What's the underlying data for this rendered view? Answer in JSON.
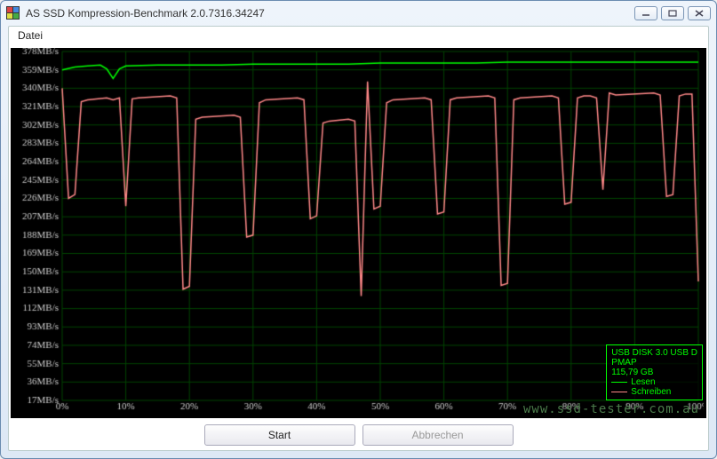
{
  "window": {
    "title": "AS SSD Kompression-Benchmark 2.0.7316.34247"
  },
  "menu": {
    "file": "Datei"
  },
  "buttons": {
    "start": "Start",
    "abort": "Abbrechen"
  },
  "legend": {
    "device_line1": "USB DISK 3.0 USB D",
    "device_line2": "PMAP",
    "capacity": "115,79 GB",
    "read": "Lesen",
    "write": "Schreiben",
    "read_color": "#00ff00",
    "write_color": "#ff8888"
  },
  "watermark": "www.ssd-tester.com.au",
  "chart": {
    "bg": "#000000",
    "grid_color": "#004400",
    "axis_color": "#cccccc",
    "y": {
      "min": 17,
      "max": 378,
      "step": 19,
      "unit": "MB/s",
      "label_fontsize": 11
    },
    "x": {
      "min": 0,
      "max": 100,
      "step": 10,
      "unit": "%",
      "label_fontsize": 11
    },
    "series": {
      "read": {
        "color": "#00ff00",
        "line_width": 1.5,
        "points": [
          [
            0,
            359
          ],
          [
            2,
            362
          ],
          [
            4,
            363
          ],
          [
            6,
            364
          ],
          [
            7,
            360
          ],
          [
            8,
            350
          ],
          [
            9,
            360
          ],
          [
            10,
            363
          ],
          [
            15,
            364
          ],
          [
            20,
            364
          ],
          [
            25,
            364
          ],
          [
            30,
            365
          ],
          [
            35,
            365
          ],
          [
            40,
            365
          ],
          [
            45,
            365
          ],
          [
            50,
            366
          ],
          [
            55,
            366
          ],
          [
            60,
            366
          ],
          [
            65,
            366
          ],
          [
            70,
            367
          ],
          [
            75,
            367
          ],
          [
            80,
            367
          ],
          [
            85,
            367
          ],
          [
            90,
            367
          ],
          [
            95,
            367
          ],
          [
            100,
            367
          ]
        ]
      },
      "write": {
        "color": "#ff8888",
        "line_width": 1.5,
        "points": [
          [
            0,
            340
          ],
          [
            1,
            226
          ],
          [
            2,
            230
          ],
          [
            3,
            326
          ],
          [
            4,
            328
          ],
          [
            7,
            330
          ],
          [
            8,
            328
          ],
          [
            9,
            330
          ],
          [
            10,
            218
          ],
          [
            11,
            329
          ],
          [
            12,
            330
          ],
          [
            17,
            332
          ],
          [
            18,
            330
          ],
          [
            19,
            132
          ],
          [
            20,
            135
          ],
          [
            21,
            308
          ],
          [
            22,
            310
          ],
          [
            27,
            312
          ],
          [
            28,
            310
          ],
          [
            29,
            186
          ],
          [
            30,
            188
          ],
          [
            31,
            325
          ],
          [
            32,
            328
          ],
          [
            37,
            330
          ],
          [
            38,
            328
          ],
          [
            39,
            205
          ],
          [
            40,
            208
          ],
          [
            41,
            304
          ],
          [
            42,
            306
          ],
          [
            45,
            308
          ],
          [
            46,
            306
          ],
          [
            47,
            125
          ],
          [
            48,
            347
          ],
          [
            49,
            215
          ],
          [
            50,
            218
          ],
          [
            51,
            325
          ],
          [
            52,
            328
          ],
          [
            57,
            330
          ],
          [
            58,
            328
          ],
          [
            59,
            210
          ],
          [
            60,
            212
          ],
          [
            61,
            328
          ],
          [
            62,
            330
          ],
          [
            67,
            332
          ],
          [
            68,
            330
          ],
          [
            69,
            136
          ],
          [
            70,
            138
          ],
          [
            71,
            328
          ],
          [
            72,
            330
          ],
          [
            77,
            332
          ],
          [
            78,
            330
          ],
          [
            79,
            220
          ],
          [
            80,
            222
          ],
          [
            81,
            330
          ],
          [
            82,
            332
          ],
          [
            83,
            332
          ],
          [
            84,
            330
          ],
          [
            85,
            235
          ],
          [
            86,
            335
          ],
          [
            87,
            333
          ],
          [
            93,
            335
          ],
          [
            94,
            333
          ],
          [
            95,
            228
          ],
          [
            96,
            230
          ],
          [
            97,
            332
          ],
          [
            98,
            334
          ],
          [
            99,
            334
          ],
          [
            100,
            140
          ]
        ]
      }
    }
  }
}
